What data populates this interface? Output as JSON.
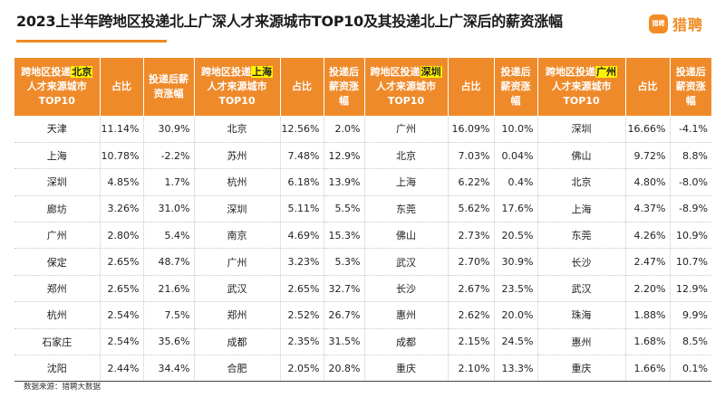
{
  "title": "2023上半年跨地区投递北上广深人才来源城市TOP10及其投递北上广深后的薪资涨幅",
  "brand": {
    "mark": "猎聘",
    "name": "猎聘",
    "color": "#f08a24"
  },
  "colors": {
    "header_bg": "#ef8a2a",
    "highlight": "#fff200"
  },
  "headers": [
    {
      "prefix": "跨地区投递",
      "city": "北京",
      "suffix": "人才来源城市",
      "rank": "TOP10",
      "share": "占比",
      "raise": "投递后薪资涨幅"
    },
    {
      "prefix": "跨地区投递",
      "city": "上海",
      "suffix": "人才来源城市",
      "rank": "TOP10",
      "share": "占比",
      "raise": "投递后薪资涨幅"
    },
    {
      "prefix": "跨地区投递",
      "city": "深圳",
      "suffix": "人才来源城市",
      "rank": "TOP10",
      "share": "占比",
      "raise": "投递后薪资涨幅"
    },
    {
      "prefix": "跨地区投递",
      "city": "广州",
      "suffix": "人才来源城市",
      "rank": "TOP10",
      "share": "占比",
      "raise": "投递后薪资涨幅"
    }
  ],
  "rows": [
    [
      "天津",
      "11.14%",
      "30.9%",
      "北京",
      "12.56%",
      "2.0%",
      "广州",
      "16.09%",
      "10.0%",
      "深圳",
      "16.66%",
      "-4.1%"
    ],
    [
      "上海",
      "10.78%",
      "-2.2%",
      "苏州",
      "7.48%",
      "12.9%",
      "北京",
      "7.03%",
      "0.04%",
      "佛山",
      "9.72%",
      "8.8%"
    ],
    [
      "深圳",
      "4.85%",
      "1.7%",
      "杭州",
      "6.18%",
      "13.9%",
      "上海",
      "6.22%",
      "0.4%",
      "北京",
      "4.80%",
      "-8.0%"
    ],
    [
      "廊坊",
      "3.26%",
      "31.0%",
      "深圳",
      "5.11%",
      "5.5%",
      "东莞",
      "5.62%",
      "17.6%",
      "上海",
      "4.37%",
      "-8.9%"
    ],
    [
      "广州",
      "2.80%",
      "5.4%",
      "南京",
      "4.69%",
      "15.3%",
      "佛山",
      "2.73%",
      "20.5%",
      "东莞",
      "4.26%",
      "10.9%"
    ],
    [
      "保定",
      "2.65%",
      "48.7%",
      "广州",
      "3.23%",
      "5.3%",
      "武汉",
      "2.70%",
      "30.9%",
      "长沙",
      "2.47%",
      "10.7%"
    ],
    [
      "郑州",
      "2.65%",
      "21.6%",
      "武汉",
      "2.65%",
      "32.7%",
      "长沙",
      "2.67%",
      "23.5%",
      "武汉",
      "2.20%",
      "12.9%"
    ],
    [
      "杭州",
      "2.54%",
      "7.5%",
      "郑州",
      "2.52%",
      "26.7%",
      "惠州",
      "2.62%",
      "20.0%",
      "珠海",
      "1.88%",
      "9.9%"
    ],
    [
      "石家庄",
      "2.54%",
      "35.6%",
      "成都",
      "2.35%",
      "31.5%",
      "成都",
      "2.15%",
      "24.5%",
      "惠州",
      "1.68%",
      "8.5%"
    ],
    [
      "沈阳",
      "2.44%",
      "34.4%",
      "合肥",
      "2.05%",
      "20.8%",
      "重庆",
      "2.10%",
      "13.3%",
      "重庆",
      "1.66%",
      "0.1%"
    ]
  ],
  "source": "数据来源：猎聘大数据"
}
